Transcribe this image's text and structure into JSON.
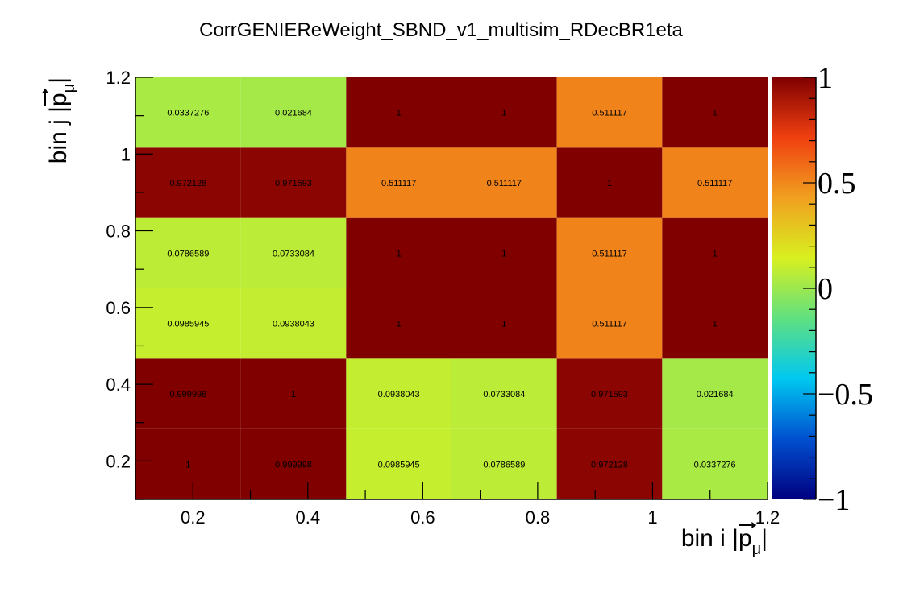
{
  "chart_data": {
    "type": "heatmap",
    "title": "CorrGENIEReWeight_SBND_v1_multisim_RDecBR1eta",
    "xlabel_prefix": "bin i |",
    "ylabel_prefix": "bin j |",
    "axis_quantity": "p",
    "axis_subscript": "μ",
    "axis_suffix": "|",
    "x_edges": [
      0.1,
      0.2833,
      0.4667,
      0.65,
      0.8333,
      1.0167,
      1.2
    ],
    "y_edges": [
      0.1,
      0.2833,
      0.4667,
      0.65,
      0.8333,
      1.0167,
      1.2
    ],
    "xlim": [
      0.1,
      1.2
    ],
    "ylim": [
      0.1,
      1.2
    ],
    "x_ticks": [
      "0.2",
      "0.4",
      "0.6",
      "0.8",
      "1",
      "1.2"
    ],
    "y_ticks": [
      "0.2",
      "0.4",
      "0.6",
      "0.8",
      "1",
      "1.2"
    ],
    "zlim": [
      -1,
      1
    ],
    "z_ticks": [
      "1",
      "0.5",
      "0",
      "−0.5",
      "−1"
    ],
    "colormap": [
      "#00007f",
      "#0050d0",
      "#00c8f0",
      "#60e080",
      "#d8f020",
      "#f0a020",
      "#f04010",
      "#800000"
    ],
    "rows": [
      {
        "values": [
          1,
          0.999998,
          0.0985945,
          0.0786589,
          0.972128,
          0.0337276
        ],
        "labels": [
          "1",
          "0.999998",
          "0.0985945",
          "0.0786589",
          "0.972128",
          "0.0337276"
        ]
      },
      {
        "values": [
          0.999998,
          1,
          0.0938043,
          0.0733084,
          0.971593,
          0.021684
        ],
        "labels": [
          "0.999998",
          "1",
          "0.0938043",
          "0.0733084",
          "0.971593",
          "0.021684"
        ]
      },
      {
        "values": [
          0.0985945,
          0.0938043,
          1,
          1,
          0.511117,
          1
        ],
        "labels": [
          "0.0985945",
          "0.0938043",
          "1",
          "1",
          "0.511117",
          "1"
        ]
      },
      {
        "values": [
          0.0786589,
          0.0733084,
          1,
          1,
          0.511117,
          1
        ],
        "labels": [
          "0.0786589",
          "0.0733084",
          "1",
          "1",
          "0.511117",
          "1"
        ]
      },
      {
        "values": [
          0.972128,
          0.971593,
          0.511117,
          0.511117,
          1,
          0.511117
        ],
        "labels": [
          "0.972128",
          "0.971593",
          "0.511117",
          "0.511117",
          "1",
          "0.511117"
        ]
      },
      {
        "values": [
          0.0337276,
          0.021684,
          1,
          1,
          0.511117,
          1
        ],
        "labels": [
          "0.0337276",
          "0.021684",
          "1",
          "1",
          "0.511117",
          "1"
        ]
      }
    ]
  }
}
